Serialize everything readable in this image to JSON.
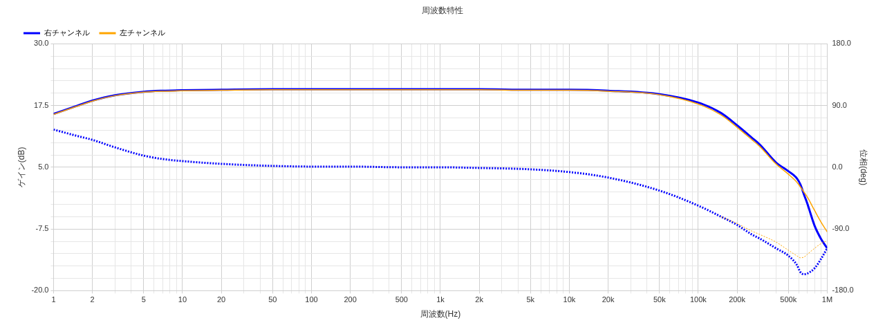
{
  "chart_data": {
    "type": "line",
    "title": "周波数特性",
    "xlabel": "周波数(Hz)",
    "ylabel": "ゲイン(dB)",
    "y2label": "位相(deg)",
    "log": "x",
    "grid": true,
    "legend": "top left",
    "marker": "none",
    "x": [
      1,
      1.5,
      2,
      3,
      5,
      7,
      10,
      20,
      50,
      100,
      200,
      500,
      1000,
      2000,
      5000,
      10000,
      20000,
      50000,
      100000,
      150000,
      200000,
      260000,
      300000,
      400000,
      500000,
      580000,
      620000,
      660000,
      700000,
      800000,
      900000,
      1000000
    ],
    "series": [
      {
        "name": "右チャンネル",
        "color": "#0000ff",
        "line_style": "solid",
        "values": [
          15.8,
          17.4,
          18.5,
          19.6,
          20.3,
          20.5,
          20.6,
          20.7,
          20.8,
          20.8,
          20.8,
          20.8,
          20.8,
          20.8,
          20.7,
          20.7,
          20.5,
          19.8,
          18.1,
          16.0,
          13.5,
          11.0,
          9.6,
          6.0,
          4.2,
          2.8,
          1.5,
          -0.5,
          -2.3,
          -6.9,
          -9.6,
          -11.4
        ]
      },
      {
        "name": "左チャンネル",
        "color": "#ffa500",
        "line_style": "solid",
        "values": [
          15.7,
          17.3,
          18.4,
          19.5,
          20.2,
          20.4,
          20.5,
          20.6,
          20.7,
          20.7,
          20.7,
          20.7,
          20.7,
          20.7,
          20.6,
          20.6,
          20.4,
          19.7,
          17.8,
          15.6,
          13.1,
          10.6,
          9.2,
          5.7,
          3.6,
          2.0,
          1.0,
          0.0,
          -1.0,
          -3.8,
          -6.2,
          -8.1
        ]
      },
      {
        "color": "#0000ff",
        "axis": "y2",
        "line_style": "dotted",
        "values": [
          55,
          46,
          40,
          29,
          17,
          12,
          9,
          5,
          2,
          1,
          1,
          0,
          0,
          -1,
          -3,
          -7,
          -15,
          -34,
          -56,
          -72,
          -84,
          -98,
          -104,
          -118,
          -129,
          -142,
          -153,
          -156,
          -155,
          -147,
          -133,
          -118
        ]
      },
      {
        "color": "#ffa500",
        "axis": "y2",
        "line_style": "dotted",
        "values": [
          null,
          null,
          null,
          null,
          null,
          null,
          null,
          null,
          null,
          null,
          null,
          null,
          null,
          null,
          null,
          null,
          null,
          null,
          null,
          -72,
          -82,
          -93,
          -98,
          -109,
          -121,
          -129,
          -132,
          -131,
          -127,
          -118,
          -111,
          -107
        ]
      }
    ],
    "xlim": [
      1,
      1000000
    ],
    "xticks": [
      1,
      2,
      {
        "value": 3,
        "label": null
      },
      {
        "value": 4,
        "label": null
      },
      5,
      {
        "value": 6,
        "label": null
      },
      {
        "value": 7,
        "label": null
      },
      {
        "value": 8,
        "label": null
      },
      {
        "value": 9,
        "label": null
      },
      10,
      20,
      {
        "value": 30,
        "label": null
      },
      {
        "value": 40,
        "label": null
      },
      50,
      {
        "value": 60,
        "label": null
      },
      {
        "value": 70,
        "label": null
      },
      {
        "value": 80,
        "label": null
      },
      {
        "value": 90,
        "label": null
      },
      100,
      200,
      {
        "value": 300,
        "label": null
      },
      {
        "value": 400,
        "label": null
      },
      500,
      {
        "value": 600,
        "label": null
      },
      {
        "value": 700,
        "label": null
      },
      {
        "value": 800,
        "label": null
      },
      {
        "value": 900,
        "label": null
      },
      {
        "value": 1000,
        "label": "1k"
      },
      {
        "value": 2000,
        "label": "2k"
      },
      {
        "value": 3000,
        "label": null
      },
      {
        "value": 4000,
        "label": null
      },
      {
        "value": 5000,
        "label": "5k"
      },
      {
        "value": 6000,
        "label": null
      },
      {
        "value": 7000,
        "label": null
      },
      {
        "value": 8000,
        "label": null
      },
      {
        "value": 9000,
        "label": null
      },
      {
        "value": 10000,
        "label": "10k"
      },
      {
        "value": 20000,
        "label": "20k"
      },
      {
        "value": 30000,
        "label": null
      },
      {
        "value": 40000,
        "label": null
      },
      {
        "value": 50000,
        "label": "50k"
      },
      {
        "value": 60000,
        "label": null
      },
      {
        "value": 70000,
        "label": null
      },
      {
        "value": 80000,
        "label": null
      },
      {
        "value": 90000,
        "label": null
      },
      {
        "value": 100000,
        "label": "100k"
      },
      {
        "value": 200000,
        "label": "200k"
      },
      {
        "value": 300000,
        "label": null
      },
      {
        "value": 400000,
        "label": null
      },
      {
        "value": 500000,
        "label": "500k"
      },
      {
        "value": 600000,
        "label": null
      },
      {
        "value": 700000,
        "label": null
      },
      {
        "value": 800000,
        "label": null
      },
      {
        "value": 900000,
        "label": null
      },
      {
        "value": 1000000,
        "label": "1M"
      }
    ],
    "ylim": [
      -20,
      30
    ],
    "yticks": [
      {
        "value": -20,
        "label": "-20.0"
      },
      {
        "value": -17.5,
        "label": null
      },
      {
        "value": -15,
        "label": null
      },
      {
        "value": -12.5,
        "label": null
      },
      {
        "value": -10,
        "label": null
      },
      {
        "value": -7.5,
        "label": "-7.5"
      },
      {
        "value": -5,
        "label": null
      },
      {
        "value": -2.5,
        "label": null
      },
      {
        "value": 0,
        "label": null
      },
      {
        "value": 2.5,
        "label": null
      },
      {
        "value": 5,
        "label": "5.0"
      },
      {
        "value": 7.5,
        "label": null
      },
      {
        "value": 10,
        "label": null
      },
      {
        "value": 12.5,
        "label": null
      },
      {
        "value": 15,
        "label": null
      },
      {
        "value": 17.5,
        "label": "17.5"
      },
      {
        "value": 20,
        "label": null
      },
      {
        "value": 22.5,
        "label": null
      },
      {
        "value": 25,
        "label": null
      },
      {
        "value": 27.5,
        "label": null
      },
      {
        "value": 30,
        "label": "30.0"
      }
    ],
    "y2lim": [
      -180,
      180
    ],
    "y2ticks": [
      {
        "value": -180,
        "label": "-180.0"
      },
      {
        "value": -90,
        "label": "-90.0"
      },
      {
        "value": 0,
        "label": "0.0"
      },
      {
        "value": 90,
        "label": "90.0"
      },
      {
        "value": 180,
        "label": "180.0"
      }
    ]
  }
}
